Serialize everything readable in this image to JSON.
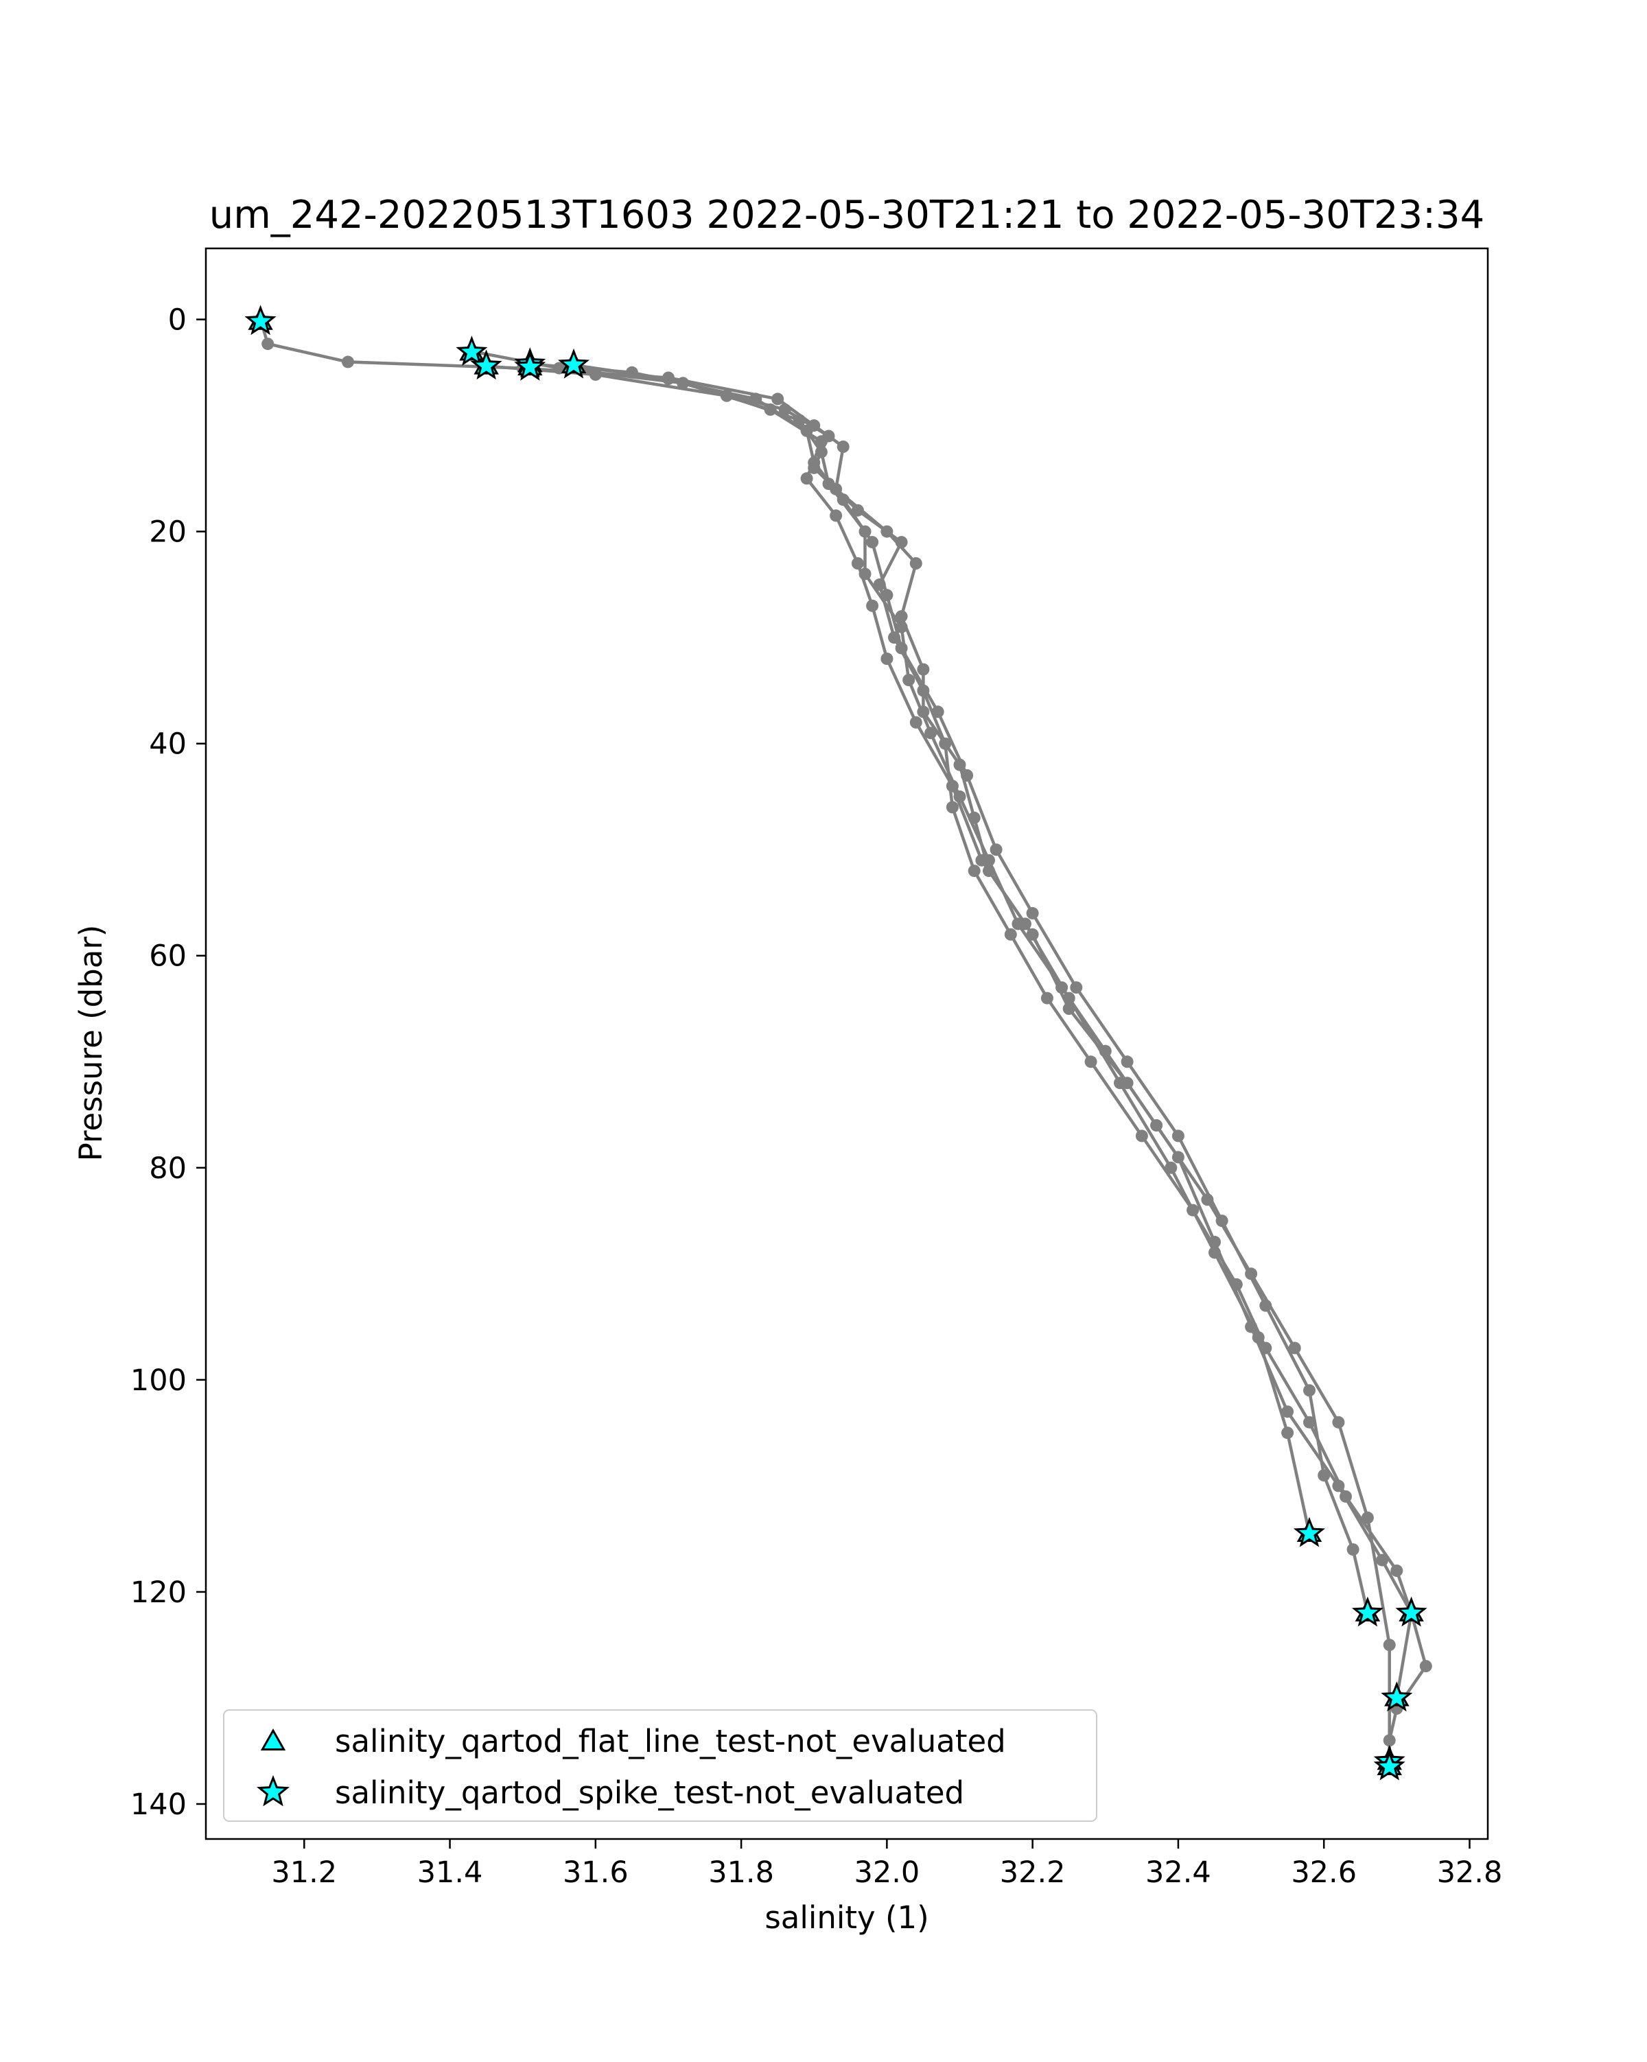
{
  "chart_data": {
    "type": "line",
    "title": "um_242-20220513T1603 2022-05-30T21:21 to 2022-05-30T23:34",
    "xlabel": "salinity (1)",
    "ylabel": "Pressure (dbar)",
    "xlim": [
      31.065,
      32.825
    ],
    "ylim": [
      143.3,
      -6.7
    ],
    "y_inverted": true,
    "grid": false,
    "legend_position": "lower left",
    "x_ticks": [
      31.2,
      31.4,
      31.6,
      31.8,
      32.0,
      32.2,
      32.4,
      32.6,
      32.8
    ],
    "x_tick_labels": [
      "31.2",
      "31.4",
      "31.6",
      "31.8",
      "32.0",
      "32.2",
      "32.4",
      "32.6",
      "32.8"
    ],
    "y_ticks": [
      0,
      20,
      40,
      60,
      80,
      100,
      120,
      140
    ],
    "y_tick_labels": [
      "0",
      "20",
      "40",
      "60",
      "80",
      "100",
      "120",
      "140"
    ],
    "profile_color": "#808080",
    "marker_fill": "#00ffff",
    "profiles": [
      {
        "salinity": [
          31.14,
          31.15,
          31.26,
          31.5,
          31.7,
          31.85,
          31.9,
          31.94,
          31.93,
          32.0,
          32.04,
          32.02,
          32.05,
          32.05,
          32.1,
          32.12,
          32.14,
          32.2,
          32.25,
          32.33,
          32.4,
          32.45,
          32.5,
          32.55,
          32.62,
          32.68,
          32.72,
          32.74,
          32.7,
          32.69,
          32.69
        ],
        "pressure": [
          0,
          2.3,
          4,
          4.6,
          5.5,
          7.5,
          10,
          12,
          16,
          20,
          23,
          28,
          33,
          37,
          42,
          47,
          52,
          58,
          65,
          72,
          79,
          87,
          95,
          103,
          110,
          117,
          122,
          127,
          131,
          134,
          136
        ]
      },
      {
        "salinity": [
          31.43,
          31.55,
          31.72,
          31.86,
          31.92,
          31.9,
          31.96,
          32.02,
          31.99,
          32.01,
          32.05,
          32.08,
          32.09,
          32.12,
          32.17,
          32.22,
          32.28,
          32.35,
          32.42,
          32.48,
          32.52,
          32.58,
          32.63,
          32.7,
          32.72,
          32.7
        ],
        "pressure": [
          3,
          4.6,
          6,
          8.5,
          11,
          14,
          18,
          21,
          25,
          30,
          35,
          40,
          46,
          52,
          58,
          64,
          70,
          77,
          84,
          91,
          97,
          104,
          111,
          118,
          122,
          130
        ]
      },
      {
        "salinity": [
          31.45,
          31.6,
          31.78,
          31.88,
          31.91,
          31.92,
          31.97,
          31.97,
          32.02,
          32.03,
          32.06,
          32.1,
          32.14,
          32.18,
          32.24,
          32.3,
          32.37,
          32.44,
          32.5,
          32.56,
          32.62,
          32.66,
          32.69,
          32.69
        ],
        "pressure": [
          4.4,
          5.2,
          7.2,
          9.5,
          12.5,
          15.5,
          20,
          24,
          29,
          34,
          39,
          45,
          51,
          57,
          63,
          69,
          76,
          83,
          90,
          97,
          104,
          113,
          125,
          136
        ]
      },
      {
        "salinity": [
          31.51,
          31.65,
          31.82,
          31.89,
          31.9,
          31.94,
          31.98,
          32.0,
          32.02,
          32.07,
          32.11,
          32.15,
          32.2,
          32.26,
          32.33,
          32.4,
          32.46,
          32.52,
          32.58,
          32.6,
          32.64,
          32.66
        ],
        "pressure": [
          4.2,
          5,
          7.5,
          10.5,
          13.5,
          17,
          21,
          26,
          31,
          37,
          43,
          50,
          56,
          63,
          70,
          77,
          85,
          93,
          101,
          109,
          116,
          122
        ]
      },
      {
        "salinity": [
          31.57,
          31.7,
          31.84,
          31.91,
          31.89,
          31.93,
          31.96,
          31.98,
          32.0,
          32.04,
          32.09,
          32.13,
          32.19,
          32.25,
          32.32,
          32.39,
          32.45,
          32.51,
          32.55,
          32.58
        ],
        "pressure": [
          4.3,
          5.6,
          8.5,
          11.5,
          15,
          18.5,
          23,
          27,
          32,
          38,
          44,
          51,
          57,
          64,
          72,
          80,
          88,
          96,
          105,
          114.5
        ]
      }
    ],
    "flag_markers": [
      {
        "salinity": 31.14,
        "pressure": 0.2
      },
      {
        "salinity": 31.43,
        "pressure": 3.1
      },
      {
        "salinity": 31.45,
        "pressure": 4.4
      },
      {
        "salinity": 31.51,
        "pressure": 4.2
      },
      {
        "salinity": 31.51,
        "pressure": 4.5
      },
      {
        "salinity": 31.57,
        "pressure": 4.3
      },
      {
        "salinity": 32.58,
        "pressure": 114.5
      },
      {
        "salinity": 32.66,
        "pressure": 122
      },
      {
        "salinity": 32.72,
        "pressure": 122
      },
      {
        "salinity": 32.7,
        "pressure": 130
      },
      {
        "salinity": 32.69,
        "pressure": 136
      },
      {
        "salinity": 32.69,
        "pressure": 136.5
      }
    ],
    "legend": [
      {
        "label": "salinity_qartod_flat_line_test-not_evaluated",
        "marker": "triangle"
      },
      {
        "label": "salinity_qartod_spike_test-not_evaluated",
        "marker": "star"
      }
    ]
  }
}
